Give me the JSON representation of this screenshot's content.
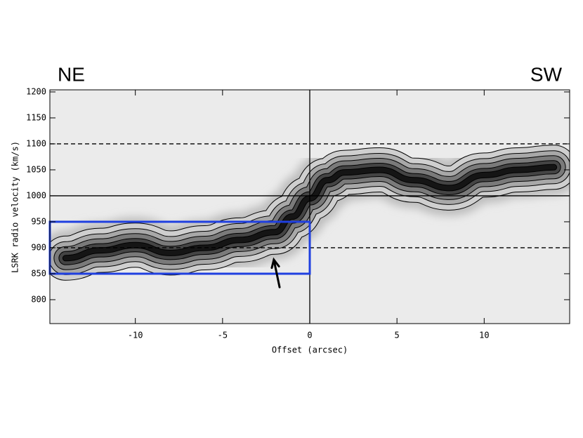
{
  "chart_data": {
    "type": "pv",
    "corner_labels": [
      "NE",
      "SW"
    ],
    "xlabel": "Offset (arcsec)",
    "ylabel": "LSRK radio velocity  (km/s)",
    "xlim": [
      -14.9,
      14.9
    ],
    "ylim": [
      754,
      1204
    ],
    "xticks": [
      -10,
      -5,
      0,
      5,
      10
    ],
    "yticks": [
      800,
      850,
      900,
      950,
      1000,
      1050,
      1100,
      1150,
      1200
    ],
    "ridge": {
      "x": [
        -14,
        -12,
        -10,
        -8,
        -6,
        -4,
        -2,
        -1,
        0,
        1,
        2,
        4,
        6,
        8,
        10,
        12,
        14
      ],
      "values": [
        880,
        895,
        905,
        890,
        900,
        915,
        930,
        960,
        995,
        1030,
        1045,
        1050,
        1030,
        1015,
        1040,
        1050,
        1055
      ]
    },
    "hlines": [
      {
        "value": 1100,
        "style": "dashed"
      },
      {
        "value": 1000,
        "style": "solid"
      },
      {
        "value": 900,
        "style": "dashed"
      }
    ],
    "vlines": [
      0
    ],
    "box": {
      "x": [
        -14.9,
        0
      ],
      "y": [
        850,
        950
      ],
      "color": "#1f3fe0"
    },
    "arrow": {
      "x": [
        -1.73,
        -2.06
      ],
      "y": [
        824,
        877
      ]
    }
  }
}
